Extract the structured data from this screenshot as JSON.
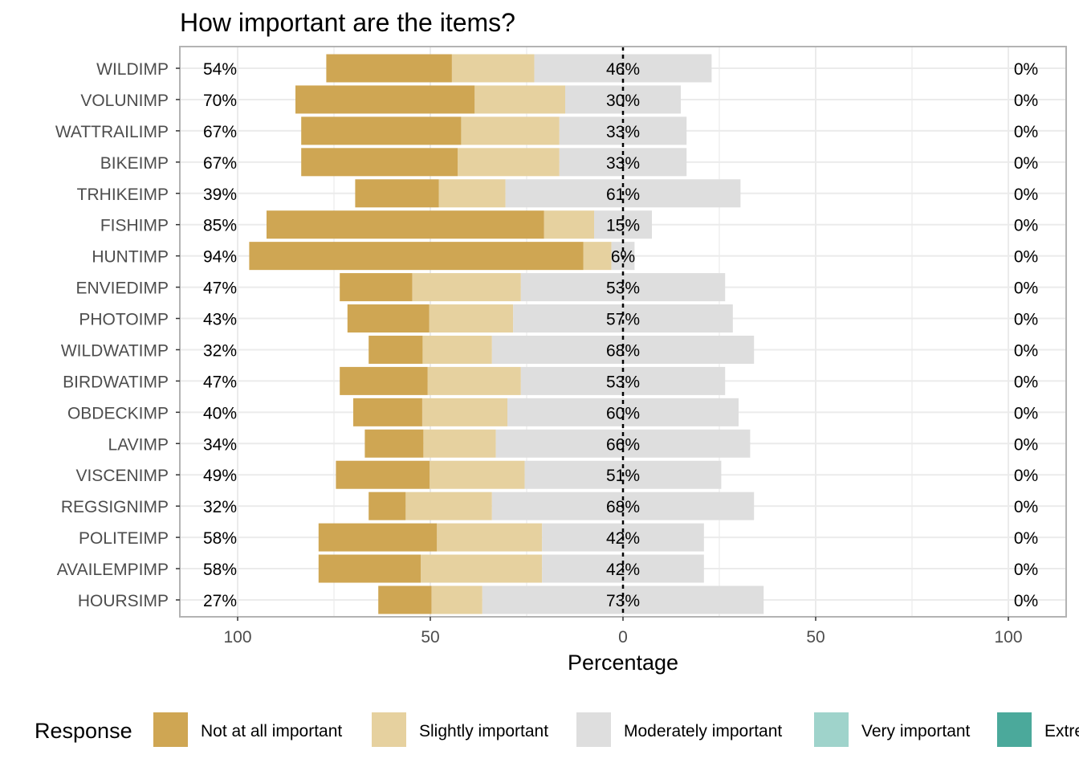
{
  "chart_data": {
    "type": "bar",
    "title": "How important are the items?",
    "xlabel": "Percentage",
    "ylabel": "",
    "x_ticks": [
      "100",
      "50",
      "0",
      "50",
      "100"
    ],
    "categories": [
      "WILDIMP",
      "VOLUNIMP",
      "WATTRAILIMP",
      "BIKEIMP",
      "TRHIKEIMP",
      "FISHIMP",
      "HUNTIMP",
      "ENVIEDIMP",
      "PHOTOIMP",
      "WILDWATIMP",
      "BIRDWATIMP",
      "OBDECKIMP",
      "LAVIMP",
      "VISCENIMP",
      "REGSIGNIMP",
      "POLITEIMP",
      "AVAILEMPIMP",
      "HOURSIMP"
    ],
    "series": [
      {
        "name": "Not at all important",
        "color": "#cfa653",
        "values": [
          32.6,
          46.5,
          41.5,
          40.6,
          21.7,
          72.0,
          86.7,
          18.8,
          21.2,
          14.0,
          22.8,
          17.9,
          15.2,
          24.3,
          9.6,
          30.7,
          26.5,
          13.8
        ]
      },
      {
        "name": "Slightly important",
        "color": "#e6d19f",
        "values": [
          21.4,
          23.5,
          25.5,
          26.4,
          17.3,
          13.0,
          7.3,
          28.2,
          21.8,
          18.0,
          24.2,
          22.1,
          18.8,
          24.7,
          22.4,
          27.3,
          31.5,
          13.2
        ]
      },
      {
        "name": "Moderately important",
        "color": "#dedede",
        "values": [
          46.0,
          30.0,
          33.0,
          33.0,
          61.0,
          15.0,
          6.0,
          53.0,
          57.0,
          68.0,
          53.0,
          60.0,
          66.0,
          51.0,
          68.0,
          42.0,
          42.0,
          73.0
        ]
      },
      {
        "name": "Very important",
        "color": "#9fd3cb",
        "values": [
          0,
          0,
          0,
          0,
          0,
          0,
          0,
          0,
          0,
          0,
          0,
          0,
          0,
          0,
          0,
          0,
          0,
          0
        ]
      },
      {
        "name": "Extremely important",
        "color": "#4ba99b",
        "values": [
          0,
          0,
          0,
          0,
          0,
          0,
          0,
          0,
          0,
          0,
          0,
          0,
          0,
          0,
          0,
          0,
          0,
          0
        ]
      }
    ],
    "left_labels": [
      "54%",
      "70%",
      "67%",
      "67%",
      "39%",
      "85%",
      "94%",
      "47%",
      "43%",
      "32%",
      "47%",
      "40%",
      "34%",
      "49%",
      "32%",
      "58%",
      "58%",
      "27%"
    ],
    "center_labels": [
      "46%",
      "30%",
      "33%",
      "33%",
      "61%",
      "15%",
      "6%",
      "53%",
      "57%",
      "68%",
      "53%",
      "60%",
      "66%",
      "51%",
      "68%",
      "42%",
      "42%",
      "73%"
    ],
    "right_labels": [
      "0%",
      "0%",
      "0%",
      "0%",
      "0%",
      "0%",
      "0%",
      "0%",
      "0%",
      "0%",
      "0%",
      "0%",
      "0%",
      "0%",
      "0%",
      "0%",
      "0%",
      "0%"
    ],
    "xlim": [
      -100,
      100
    ],
    "grid": true,
    "legend": {
      "title": "Response",
      "position": "bottom",
      "items": [
        "Not at all important",
        "Slightly important",
        "Moderately important",
        "Very important",
        "Extre"
      ]
    }
  }
}
